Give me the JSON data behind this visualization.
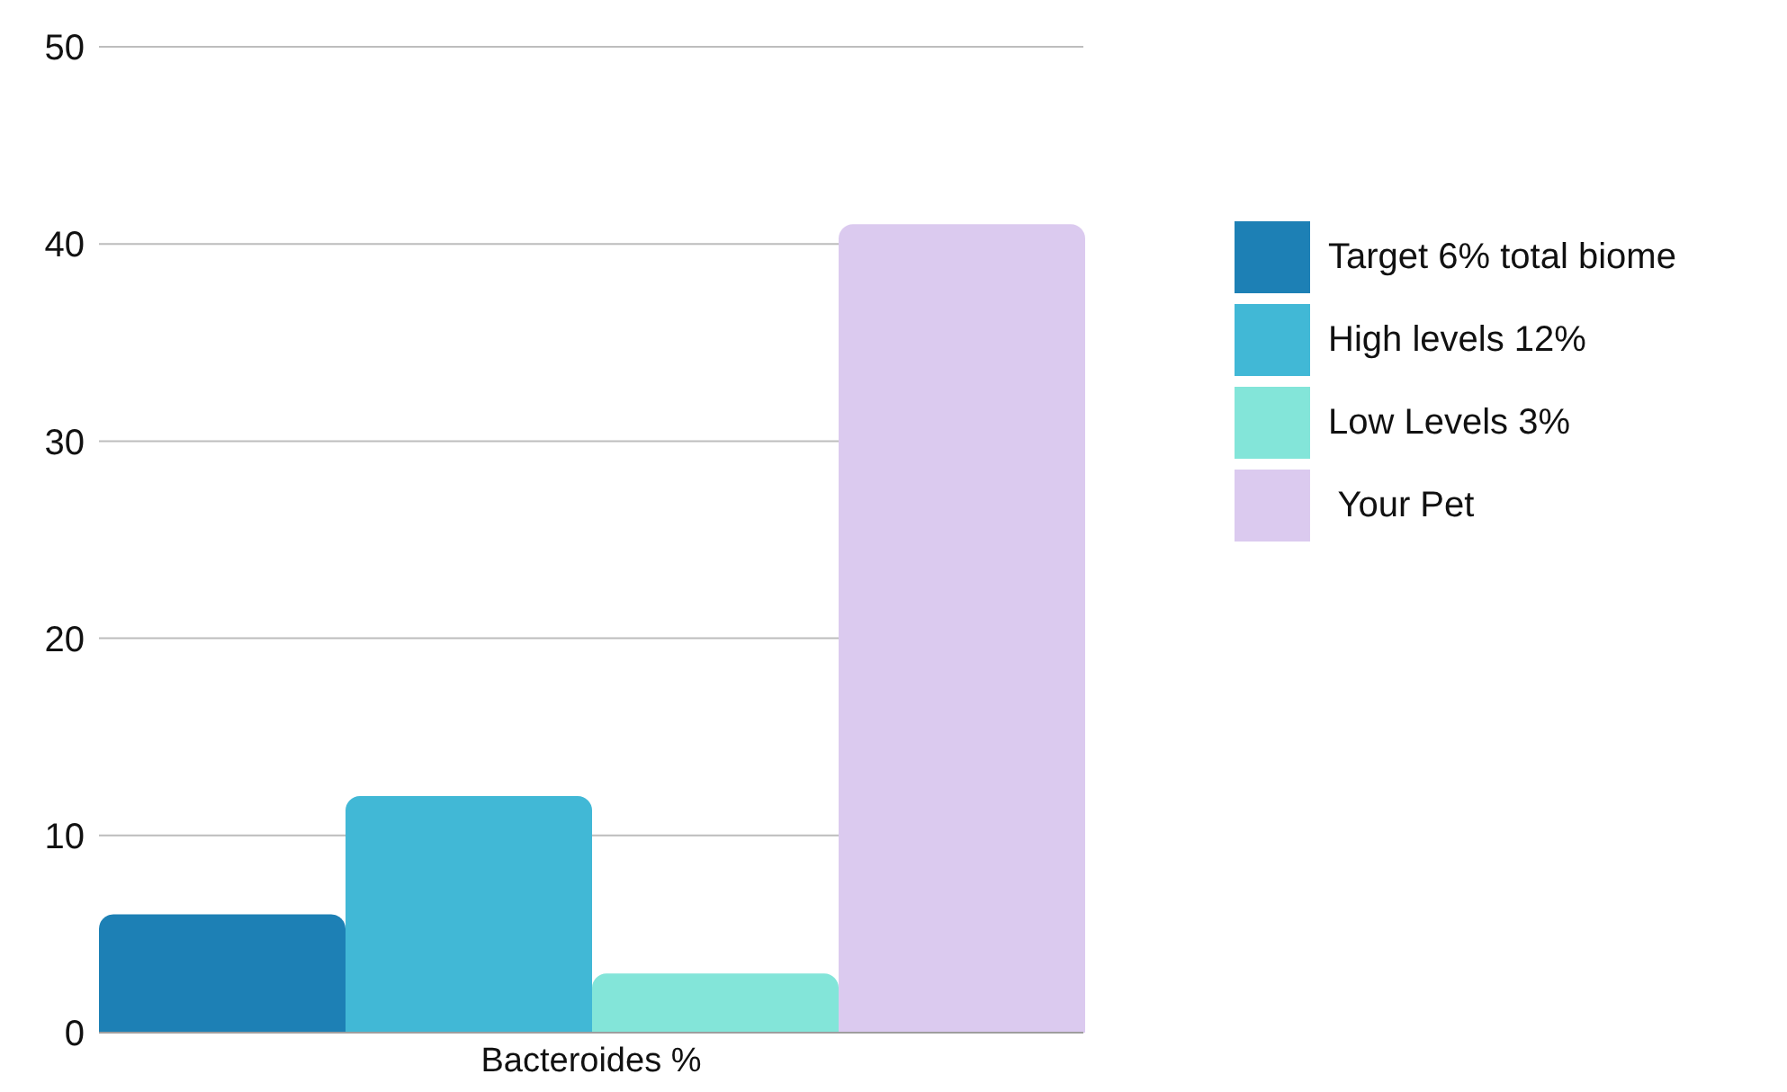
{
  "chart_data": {
    "type": "bar",
    "categories": [
      "Bacteroides %"
    ],
    "series": [
      {
        "name": "Target 6% total biome",
        "color": "#1d80b5",
        "values": [
          6
        ]
      },
      {
        "name": "High levels 12%",
        "color": "#41b8d6",
        "values": [
          12
        ]
      },
      {
        "name": "Low Levels 3%",
        "color": "#83e5d9",
        "values": [
          3
        ]
      },
      {
        "name": " Your Pet",
        "color": "#dbcaef",
        "values": [
          41
        ]
      }
    ],
    "ylim": [
      0,
      50
    ],
    "yticks": [
      0,
      10,
      20,
      30,
      40,
      50
    ],
    "grid": "y",
    "legend": "right"
  }
}
